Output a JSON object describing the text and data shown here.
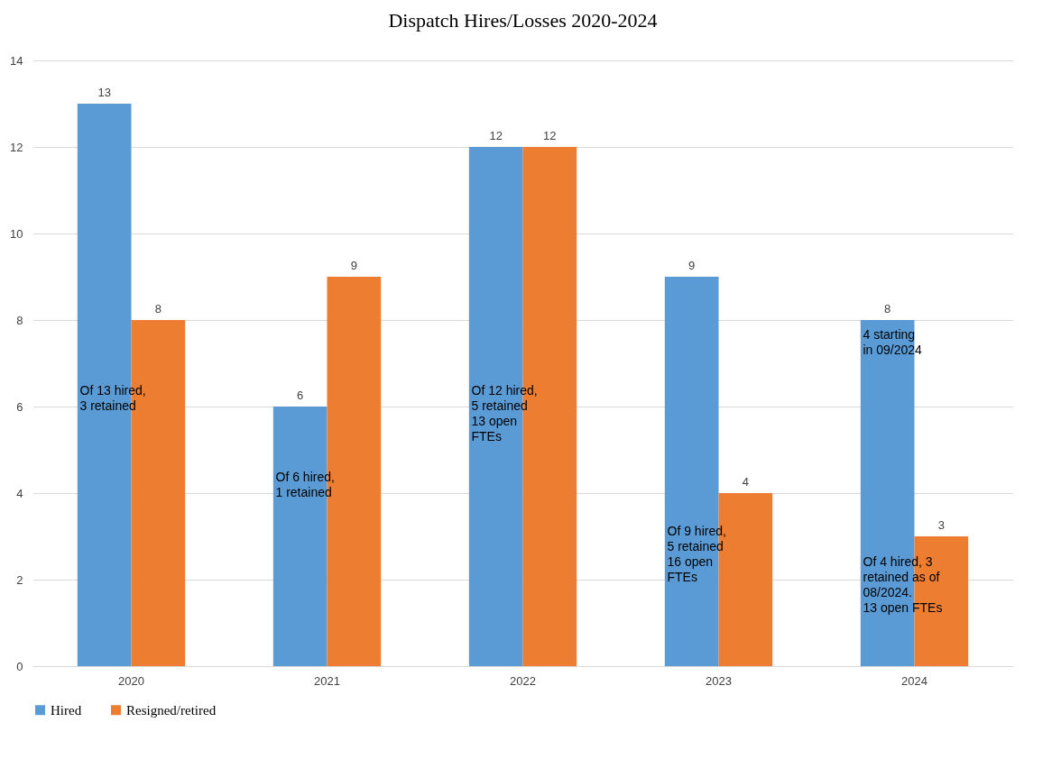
{
  "chart_data": {
    "type": "bar",
    "title": "Dispatch Hires/Losses 2020-2024",
    "categories": [
      "2020",
      "2021",
      "2022",
      "2023",
      "2024"
    ],
    "series": [
      {
        "name": "Hired",
        "color": "#5b9bd5",
        "values": [
          13,
          6,
          12,
          9,
          8
        ]
      },
      {
        "name": "Resigned/retired",
        "color": "#ed7d31",
        "values": [
          8,
          9,
          12,
          4,
          3
        ]
      }
    ],
    "ylim": [
      0,
      14
    ],
    "yticks": [
      0,
      2,
      4,
      6,
      8,
      10,
      12,
      14
    ],
    "grid": "y",
    "legend": "bottom",
    "data_labels": true,
    "annotations": [
      {
        "text": "Of 13 hired,\n3 retained",
        "x": "2020",
        "y": 6.5
      },
      {
        "text": "Of 6 hired,\n1 retained",
        "x": "2021",
        "y": 4.5
      },
      {
        "text": "Of 12 hired,\n5 retained\n\n13 open\nFTEs",
        "x": "2022",
        "y": 6.5
      },
      {
        "text": "Of 9 hired,\n5 retained\n\n16 open\nFTEs",
        "x": "2023",
        "y": 3.25
      },
      {
        "text": "4 starting\nin 09/2024",
        "x": "2024",
        "y": 7.8
      },
      {
        "text": "Of 4 hired, 3\nretained as of\n08/2024.\n\n13 open FTEs",
        "x": "2024",
        "y": 2.55
      }
    ]
  }
}
